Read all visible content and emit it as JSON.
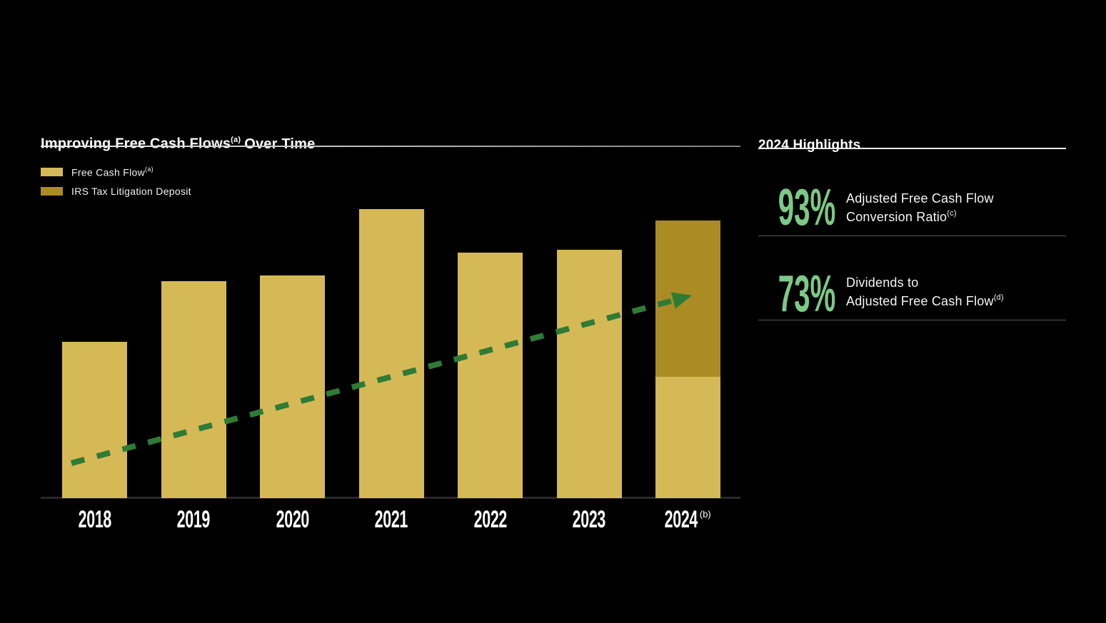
{
  "page": {
    "background": "#000000"
  },
  "chart": {
    "title": {
      "part1": "Improving Free Cash Flows",
      "sup": "(a)",
      "part2": "Over Time"
    },
    "legend": [
      {
        "label": "Free Cash Flow",
        "sup": "(a)",
        "color": "#d6b957"
      },
      {
        "label": "IRS Tax Litigation Deposit",
        "sup": "",
        "color": "#ab8c24"
      }
    ]
  },
  "chart_data": {
    "type": "bar",
    "stacked": true,
    "title": "Improving Free Cash Flows(a) Over Time",
    "categories": [
      "2018",
      "2019",
      "2020",
      "2021",
      "2022",
      "2023",
      "2024"
    ],
    "category_sups": [
      "",
      "",
      "",
      "",
      "",
      "",
      "(b)"
    ],
    "series": [
      {
        "name": "Free Cash Flow",
        "color": "#d6b957",
        "values": [
          54,
          75,
          77,
          100,
          85,
          86,
          42
        ]
      },
      {
        "name": "IRS Tax Litigation Deposit",
        "color": "#ab8c24",
        "values": [
          0,
          0,
          0,
          0,
          0,
          0,
          54
        ]
      }
    ],
    "value_axis": {
      "visible": false,
      "note": "no numeric axis shown; values are relative bar heights indexed to 2021 = 100"
    },
    "trend_arrow": {
      "present": true,
      "style": "dashed",
      "color": "#2e7b36",
      "direction": "up-right"
    },
    "legend_position": "top-left",
    "grid": false,
    "background": "#000000"
  },
  "highlights": {
    "title": "2024 Highlights",
    "accent_color": "#7ec887",
    "items": [
      {
        "value": "93%",
        "line1": "Adjusted Free Cash Flow",
        "line2": "Conversion Ratio",
        "sup": "(c)"
      },
      {
        "value": "73%",
        "line1": "Dividends to",
        "line2": "Adjusted Free Cash Flow",
        "sup": "(d)"
      }
    ]
  },
  "colors": {
    "free_cash_flow_gold": "#d6b957",
    "irs_deposit_gold": "#ab8c24",
    "highlight_green": "#7ec887",
    "arrow_green": "#2e7b36",
    "rule_light": "#ececec",
    "rule_separator": "#565656",
    "axis_baseline": "#282828"
  }
}
